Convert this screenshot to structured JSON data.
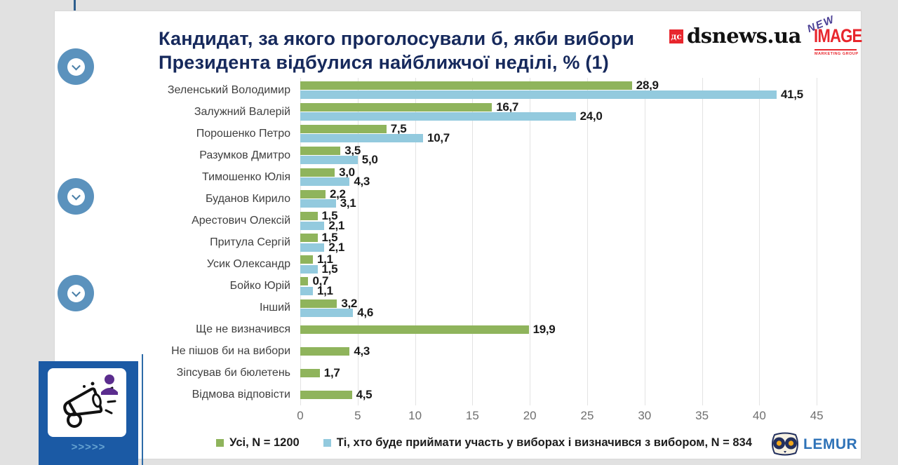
{
  "slide": {
    "title_line1": "Кандидат, за якого проголосували б, якби вибори",
    "title_line2": "Президента відбулися найближчої неділі, % (1)"
  },
  "logos": {
    "dsnews": {
      "symbol": "дс",
      "text": "dsnews.ua"
    },
    "new_image": {
      "line1": "NEW",
      "line2": "IMAGE",
      "line3": "MARKETING GROUP"
    },
    "lemur": {
      "text": "LEMUR"
    }
  },
  "chart_data": {
    "type": "bar",
    "orientation": "horizontal",
    "title": "Кандидат, за якого проголосували б, якби вибори Президента відбулися найближчої неділі, % (1)",
    "categories": [
      "Зеленський Володимир",
      "Залужний Валерій",
      "Порошенко Петро",
      "Разумков Дмитро",
      "Тимошенко Юлія",
      "Буданов Кирило",
      "Арестович Олексій",
      "Притула Сергій",
      "Усик Олександр",
      "Бойко Юрій",
      "Інший",
      "Ще не визначився",
      "Не пішов би на вибори",
      "Зіпсував би бюлетень",
      "Відмова відповісти"
    ],
    "series": [
      {
        "name": "Усі, N = 1200",
        "color": "#8fb45c",
        "values": [
          28.9,
          16.7,
          7.5,
          3.5,
          3.0,
          2.2,
          1.5,
          1.5,
          1.1,
          0.7,
          3.2,
          19.9,
          4.3,
          1.7,
          4.5
        ]
      },
      {
        "name": "Ті, хто буде приймати участь у виборах і визначився з вибором, N = 834",
        "color": "#93cade",
        "values": [
          41.5,
          24.0,
          10.7,
          5.0,
          4.3,
          3.1,
          2.1,
          2.1,
          1.5,
          1.1,
          4.6,
          null,
          null,
          null,
          null
        ]
      }
    ],
    "xlim": [
      0,
      45
    ],
    "xticks": [
      0,
      5,
      10,
      15,
      20,
      25,
      30,
      35,
      40,
      45
    ],
    "grid": true,
    "legend_position": "bottom",
    "value_labels": true,
    "decimal_separator": ","
  },
  "colors": {
    "title": "#16295c",
    "timeline": "#2d5e8e",
    "circle": "#5b92bd",
    "badge": "#1b5aa5",
    "brand_red": "#e8262d",
    "lemur_blue": "#2f73b8"
  },
  "decor": {
    "nav_chevrons": ">>>>>"
  }
}
